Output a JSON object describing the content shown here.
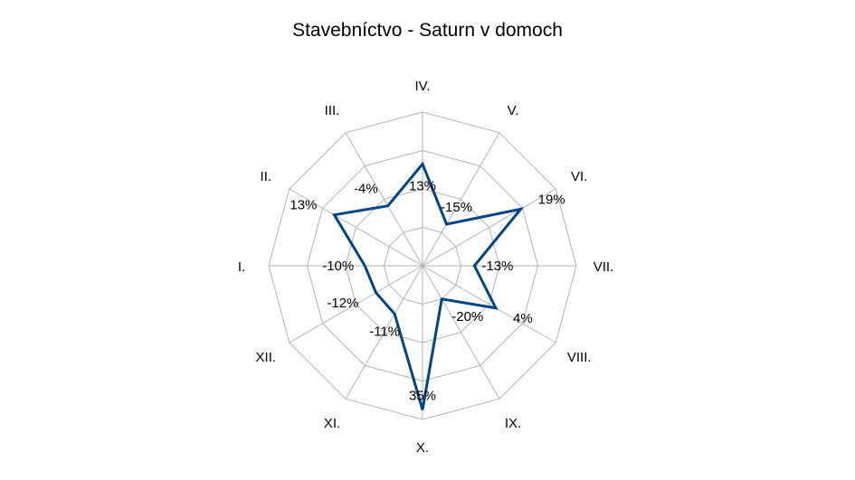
{
  "chart_data": {
    "type": "radar",
    "title": "Stavebníctvo - Saturn v domoch",
    "categories": [
      "I.",
      "II.",
      "III.",
      "IV.",
      "V.",
      "VI.",
      "VII.",
      "VIII.",
      "IX.",
      "X.",
      "XI.",
      "XII."
    ],
    "series": [
      {
        "values": [
          -10,
          13,
          -4,
          13,
          -15,
          19,
          -13,
          4,
          -20,
          35,
          -11,
          -12
        ],
        "data_labels": [
          "-10%",
          "13%",
          "-4%",
          "13%",
          "-15%",
          "19%",
          "-13%",
          "4%",
          "-20%",
          "35%",
          "-11%",
          "-12%"
        ]
      }
    ],
    "rlim": [
      -40,
      40
    ],
    "grid": true,
    "legend": "none",
    "colors": {
      "series": "#004586",
      "grid": "#b3b3b3"
    }
  }
}
